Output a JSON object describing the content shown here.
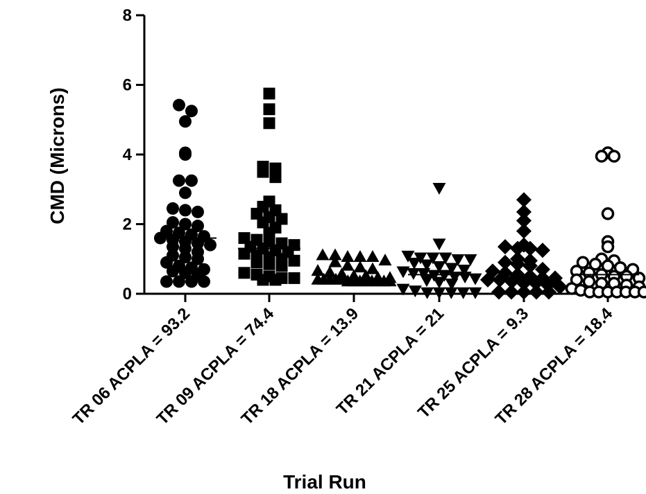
{
  "chart_data": {
    "type": "scatter",
    "subtype": "column-scatter (dot plot) with median lines",
    "xlabel": "Trial Run",
    "ylabel": "CMD (Microns)",
    "ylim": [
      0,
      8
    ],
    "yticks": [
      "0",
      "2",
      "4",
      "6",
      "8"
    ],
    "grid": false,
    "legend": "none",
    "categories": [
      "TR 06 ACPLA = 93.2",
      "TR 09 ACPLA = 74.4",
      "TR 18 ACPLA = 13.9",
      "TR 21 ACPLA = 21",
      "TR 25 ACPLA = 9.3",
      "TR 28 ACPLA = 18.4"
    ],
    "series": [
      {
        "marker": "filled-circle",
        "median": 1.6,
        "values": [
          5.25,
          4.95,
          5.42,
          4.0,
          4.05,
          3.25,
          3.25,
          2.9,
          2.45,
          2.4,
          2.35,
          2.0,
          2.05,
          1.95,
          1.8,
          1.75,
          1.7,
          1.65,
          1.6,
          1.55,
          1.5,
          1.45,
          1.4,
          1.35,
          1.3,
          1.2,
          1.0,
          0.9,
          0.8,
          0.75,
          0.7,
          0.65,
          0.6,
          0.55,
          0.35,
          0.35,
          0.35,
          0.35,
          1.1,
          1.05
        ]
      },
      {
        "marker": "filled-square",
        "median": 1.3,
        "values": [
          5.75,
          5.3,
          4.9,
          3.65,
          3.6,
          3.5,
          3.35,
          2.65,
          2.5,
          2.4,
          2.3,
          2.2,
          2.15,
          2.05,
          1.9,
          1.75,
          1.6,
          1.55,
          1.5,
          1.45,
          1.4,
          1.35,
          1.3,
          1.25,
          1.2,
          1.15,
          1.1,
          1.05,
          1.0,
          0.95,
          0.9,
          0.85,
          0.8,
          0.6,
          0.55,
          0.5,
          0.45,
          0.4,
          0.4,
          0.45
        ]
      },
      {
        "marker": "filled-triangle-up",
        "median": 0.4,
        "values": [
          1.1,
          1.1,
          1.05,
          1.05,
          1.05,
          0.95,
          0.9,
          0.8,
          0.75,
          0.7,
          0.65,
          0.6,
          0.55,
          0.5,
          0.5,
          0.45,
          0.45,
          0.4,
          0.4,
          0.4,
          0.4,
          0.4,
          0.35,
          0.35,
          0.35,
          0.35,
          0.35,
          0.35,
          0.35,
          0.35
        ]
      },
      {
        "marker": "filled-triangle-down",
        "median": 0.55,
        "values": [
          3.05,
          1.45,
          1.1,
          1.05,
          1.05,
          1.05,
          1.0,
          1.0,
          0.9,
          0.85,
          0.8,
          0.75,
          0.7,
          0.65,
          0.6,
          0.6,
          0.55,
          0.55,
          0.5,
          0.5,
          0.45,
          0.4,
          0.35,
          0.3,
          0.15,
          0.1,
          0.05,
          0.05,
          0.05,
          0.05,
          0.05
        ]
      },
      {
        "marker": "filled-diamond",
        "median": 0.45,
        "values": [
          2.7,
          2.35,
          2.1,
          1.8,
          1.4,
          1.35,
          1.3,
          1.3,
          1.25,
          1.0,
          0.95,
          0.9,
          0.85,
          0.8,
          0.7,
          0.65,
          0.6,
          0.55,
          0.5,
          0.45,
          0.45,
          0.4,
          0.4,
          0.35,
          0.3,
          0.3,
          0.25,
          0.2,
          0.05,
          0.05,
          0.05,
          0.05,
          0.05
        ]
      },
      {
        "marker": "open-circle",
        "median": 0.55,
        "values": [
          4.05,
          3.95,
          3.95,
          2.3,
          1.5,
          1.35,
          1.0,
          0.95,
          0.9,
          0.85,
          0.8,
          0.75,
          0.7,
          0.65,
          0.6,
          0.55,
          0.5,
          0.5,
          0.45,
          0.4,
          0.35,
          0.3,
          0.3,
          0.25,
          0.2,
          0.15,
          0.1,
          0.05,
          0.05,
          0.05,
          0.05,
          0.05,
          0.05,
          0.05
        ]
      }
    ]
  }
}
